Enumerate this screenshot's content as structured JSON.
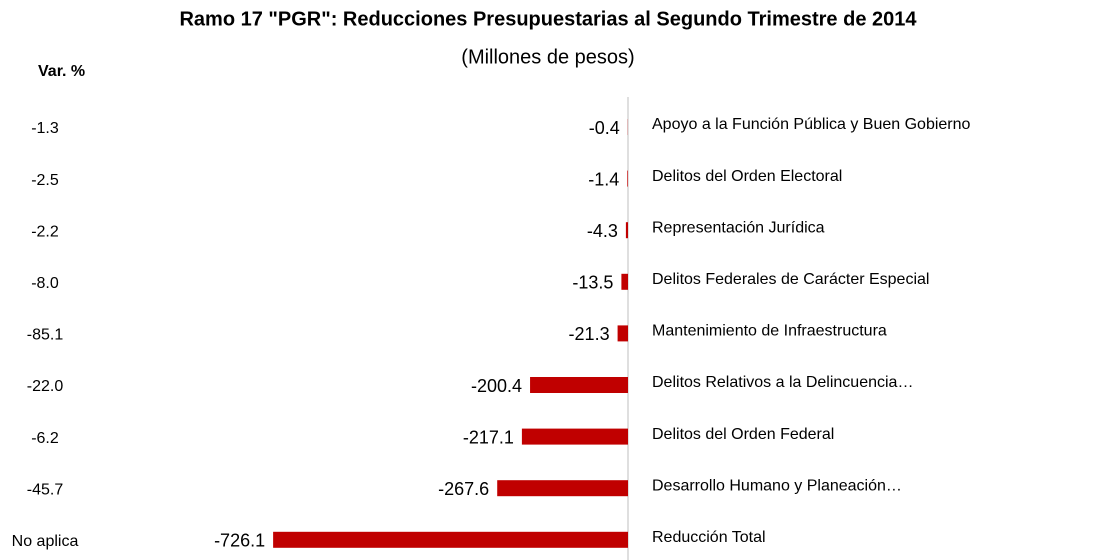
{
  "chart_data": {
    "type": "barh",
    "title": "Ramo 17 \"PGR\": Reducciones Presupuestarias al Segundo Trimestre de 2014",
    "subtitle": "(Millones de pesos)",
    "var_header": "Var. %",
    "categories": [
      "Apoyo a la Función Pública y Buen Gobierno",
      "Delitos del Orden Electoral",
      "Representación Jurídica",
      "Delitos Federales de Carácter Especial",
      "Mantenimiento de Infraestructura",
      "Delitos Relativos a la Delincuencia…",
      "Delitos del Orden Federal",
      "Desarrollo Humano y Planeación…",
      "Reducción Total"
    ],
    "values": [
      -0.4,
      -1.4,
      -4.3,
      -13.5,
      -21.3,
      -200.4,
      -217.1,
      -267.6,
      -726.1
    ],
    "var_pct": [
      "-1.3",
      "-2.5",
      "-2.2",
      "-8.0",
      "-85.1",
      "-22.0",
      "-6.2",
      "-45.7",
      "No aplica"
    ],
    "color": "#c00000",
    "xlim": [
      -800,
      0
    ]
  }
}
